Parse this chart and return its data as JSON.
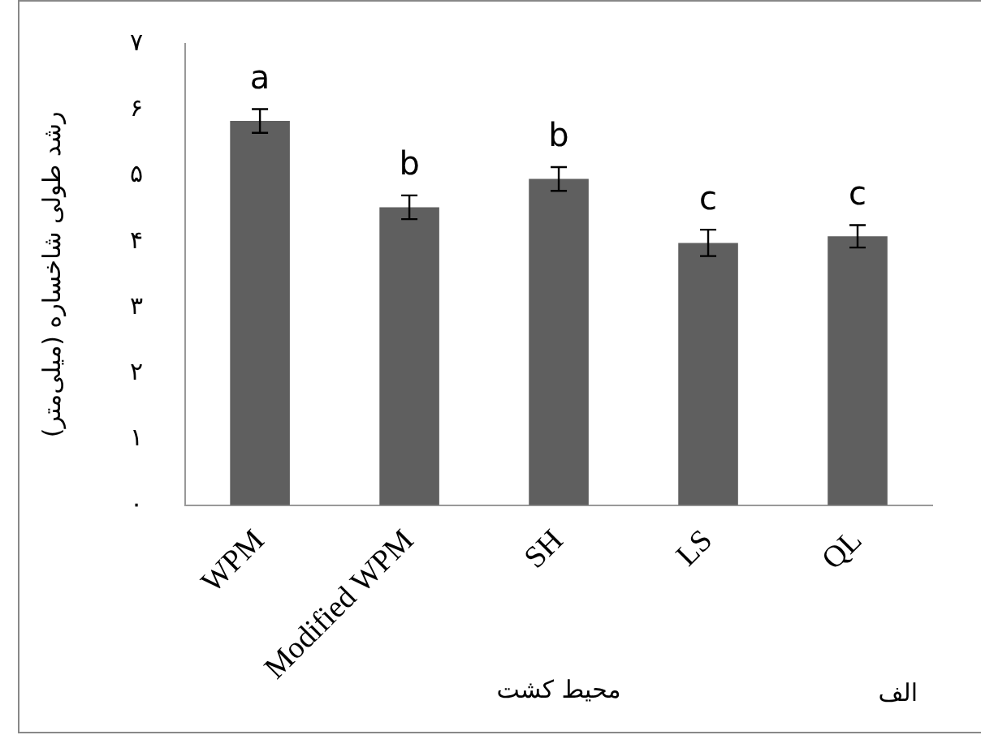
{
  "chart_data": {
    "type": "bar",
    "categories": [
      "WPM",
      "Modified WPM",
      "SH",
      "LS",
      "QL"
    ],
    "values": [
      5.83,
      4.52,
      4.95,
      3.98,
      4.08
    ],
    "errors": [
      0.18,
      0.18,
      0.18,
      0.2,
      0.17
    ],
    "value_labels": [
      "a",
      "b",
      "b",
      "c",
      "c"
    ],
    "color": "#5f5f5f",
    "ylabel": "رشد طولی شاخساره (میلی‌متر)",
    "xlabel": "محیط کشت",
    "annotations": [
      "الف"
    ],
    "ylim": [
      0,
      7
    ],
    "yticks": [
      {
        "value": 0,
        "label": "۰"
      },
      {
        "value": 1,
        "label": "۱"
      },
      {
        "value": 2,
        "label": "۲"
      },
      {
        "value": 3,
        "label": "۳"
      },
      {
        "value": 4,
        "label": "۴"
      },
      {
        "value": 5,
        "label": "۵"
      },
      {
        "value": 6,
        "label": "۶"
      },
      {
        "value": 7,
        "label": "۷"
      }
    ],
    "grid": false,
    "legend": false
  }
}
